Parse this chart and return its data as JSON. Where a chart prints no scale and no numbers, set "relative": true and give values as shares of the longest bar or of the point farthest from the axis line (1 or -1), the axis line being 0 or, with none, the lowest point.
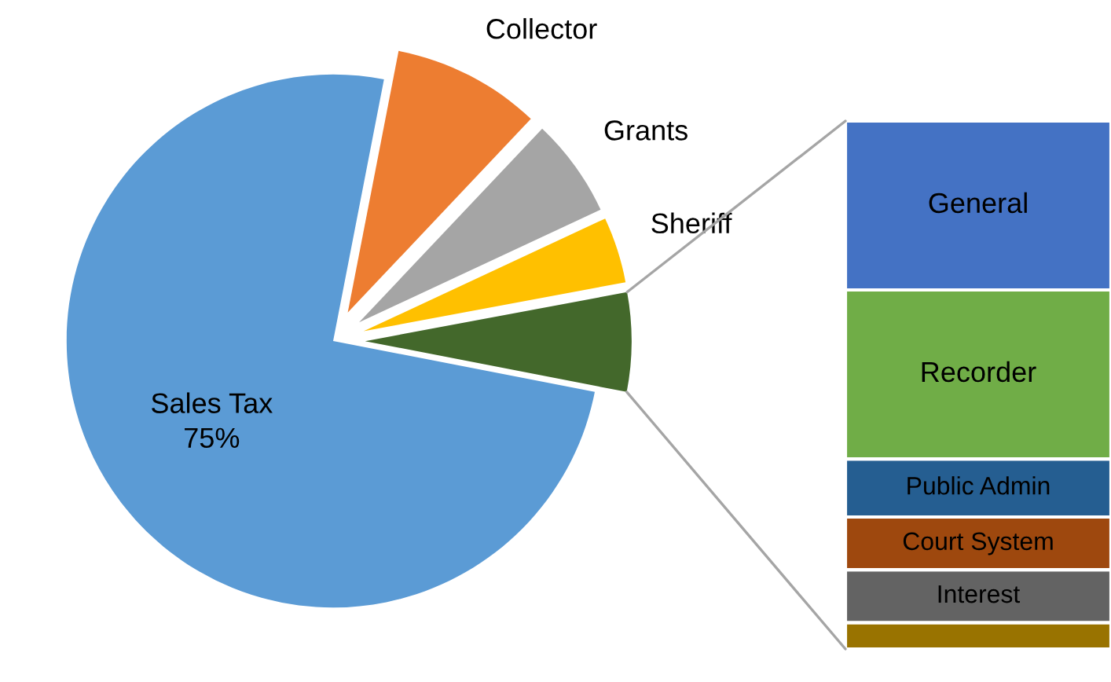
{
  "chart_data": [
    {
      "type": "pie",
      "categories": [
        "Sales Tax",
        "Collector",
        "Grants",
        "Sheriff",
        null
      ],
      "values": [
        75,
        9,
        6,
        4,
        6
      ],
      "colors": [
        "#5b9bd5",
        "#ed7d31",
        "#a5a5a5",
        "#ffc000",
        "#43682b"
      ],
      "value_labels": [
        "75%",
        null,
        null,
        null,
        null
      ]
    },
    {
      "type": "bar",
      "stacked": true,
      "relative": true,
      "categories": [
        null
      ],
      "series": [
        {
          "color": "#997300",
          "values": [
            0.05
          ]
        },
        {
          "name": "Interest",
          "color": "#636363",
          "values": [
            0.1
          ]
        },
        {
          "name": "Court System",
          "color": "#9e480e",
          "values": [
            0.1
          ]
        },
        {
          "name": "Public Admin",
          "color": "#255e91",
          "values": [
            0.11
          ]
        },
        {
          "name": "Recorder",
          "color": "#70ad47",
          "values": [
            0.32
          ]
        },
        {
          "name": "General",
          "color": "#4472c4",
          "values": [
            0.32
          ]
        }
      ]
    }
  ]
}
